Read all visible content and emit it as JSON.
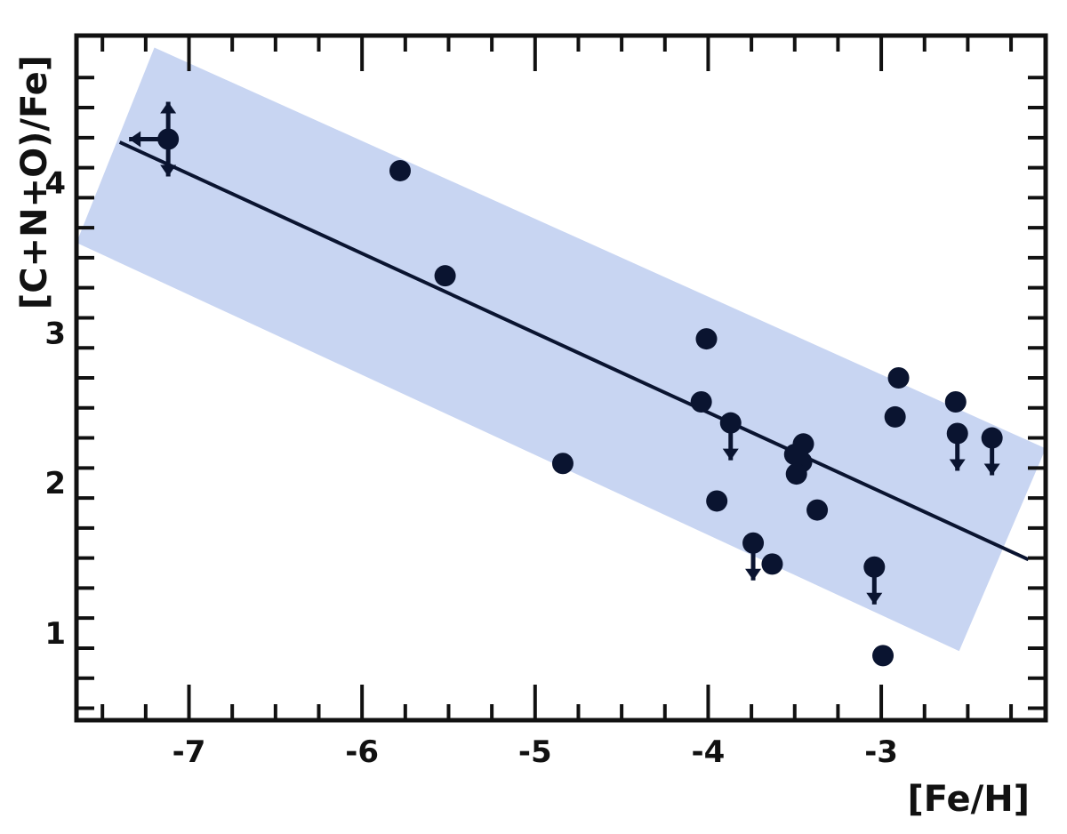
{
  "chart_data": {
    "type": "scatter",
    "xlabel": "[Fe/H]",
    "ylabel": "[C+N+O)/Fe]",
    "xlim": [
      -7.65,
      -2.05
    ],
    "ylim": [
      0.42,
      4.98
    ],
    "x_ticks": [
      -7,
      -6,
      -5,
      -4,
      -3
    ],
    "x_tick_labels": [
      "-7",
      "-6",
      "-5",
      "-4",
      "-3"
    ],
    "y_ticks": [
      1,
      2,
      3,
      4
    ],
    "y_tick_labels": [
      "1",
      "2",
      "3",
      "4"
    ],
    "grid": false,
    "legend": "none",
    "colors": {
      "band": "#c8d5f2",
      "points": "#0a1430",
      "line": "#0a1430",
      "frame": "#111111"
    },
    "band": [
      [
        -7.2,
        4.9
      ],
      [
        -2.05,
        2.23
      ],
      [
        -2.55,
        0.88
      ],
      [
        -7.65,
        3.6
      ]
    ],
    "fit_line": {
      "x": [
        -7.4,
        -2.15
      ],
      "y": [
        4.27,
        1.49
      ]
    },
    "points": [
      {
        "x": -7.12,
        "y": 4.29,
        "upper_limit": true,
        "lower_limit": true,
        "x_upper_limit": true
      },
      {
        "x": -5.78,
        "y": 4.08
      },
      {
        "x": -5.52,
        "y": 3.38
      },
      {
        "x": -4.84,
        "y": 2.13
      },
      {
        "x": -4.01,
        "y": 2.96
      },
      {
        "x": -4.04,
        "y": 2.54
      },
      {
        "x": -3.87,
        "y": 2.4,
        "upper_limit": true
      },
      {
        "x": -3.95,
        "y": 1.88
      },
      {
        "x": -3.74,
        "y": 1.6,
        "upper_limit": true
      },
      {
        "x": -3.63,
        "y": 1.46
      },
      {
        "x": -3.5,
        "y": 2.19
      },
      {
        "x": -3.45,
        "y": 2.26
      },
      {
        "x": -3.46,
        "y": 2.14
      },
      {
        "x": -3.49,
        "y": 2.06
      },
      {
        "x": -3.37,
        "y": 1.82
      },
      {
        "x": -3.04,
        "y": 1.44,
        "upper_limit": true
      },
      {
        "x": -2.99,
        "y": 0.85
      },
      {
        "x": -2.9,
        "y": 2.7
      },
      {
        "x": -2.92,
        "y": 2.44
      },
      {
        "x": -2.57,
        "y": 2.54
      },
      {
        "x": -2.56,
        "y": 2.33,
        "upper_limit": true
      },
      {
        "x": -2.36,
        "y": 2.3,
        "upper_limit": true
      }
    ]
  }
}
